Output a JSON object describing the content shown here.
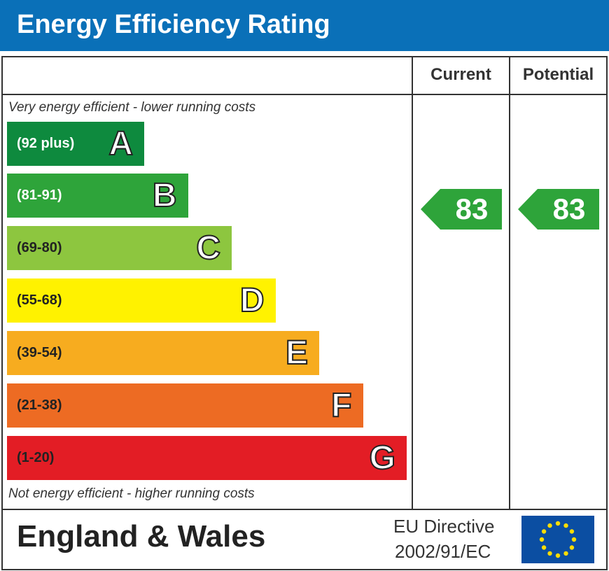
{
  "title": "Energy Efficiency Rating",
  "columns": {
    "current": "Current",
    "potential": "Potential"
  },
  "notes": {
    "top": "Very energy efficient - lower running costs",
    "bottom": "Not energy efficient - higher running costs"
  },
  "footer": {
    "region": "England & Wales",
    "directive_line1": "EU Directive",
    "directive_line2": "2002/91/EC"
  },
  "icons": {
    "eu_flag": "eu-flag-icon"
  },
  "chart_data": {
    "type": "bar",
    "title": "Energy Efficiency Rating",
    "categories": [
      "A",
      "B",
      "C",
      "D",
      "E",
      "F",
      "G"
    ],
    "bands": [
      {
        "letter": "A",
        "range": "(92 plus)",
        "color": "#0e8a3e"
      },
      {
        "letter": "B",
        "range": "(81-91)",
        "color": "#2ea43a"
      },
      {
        "letter": "C",
        "range": "(69-80)",
        "color": "#8dc63f"
      },
      {
        "letter": "D",
        "range": "(55-68)",
        "color": "#fff200"
      },
      {
        "letter": "E",
        "range": "(39-54)",
        "color": "#f7ac1f"
      },
      {
        "letter": "F",
        "range": "(21-38)",
        "color": "#ed6b23"
      },
      {
        "letter": "G",
        "range": "(1-20)",
        "color": "#e31d25"
      }
    ],
    "current": {
      "value": "83",
      "band": "B",
      "color": "#2ea43a"
    },
    "potential": {
      "value": "83",
      "band": "B",
      "color": "#2ea43a"
    }
  }
}
